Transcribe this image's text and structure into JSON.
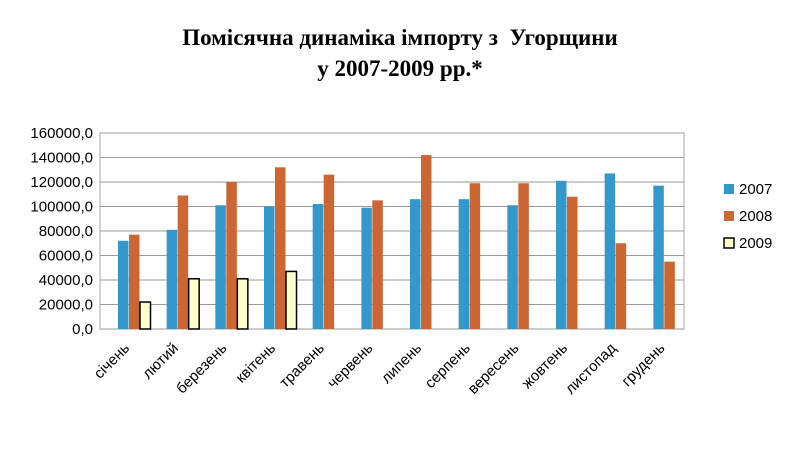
{
  "chart_data": {
    "type": "bar",
    "title_line1": "Помісячна динаміка імпорту з  Угорщини",
    "title_line2": "у 2007-2009 рр.*",
    "categories": [
      "січень",
      "лютий",
      "березень",
      "квітень",
      "травень",
      "червень",
      "липень",
      "серпень",
      "вересень",
      "жовтень",
      "листопад",
      "грудень"
    ],
    "series": [
      {
        "name": "2007",
        "color": "#3399cc",
        "values": [
          72000,
          81000,
          101000,
          100000,
          102000,
          99000,
          106000,
          106000,
          101000,
          121000,
          127000,
          117000
        ]
      },
      {
        "name": "2008",
        "color": "#cc6633",
        "values": [
          77000,
          109000,
          120000,
          132000,
          126000,
          105000,
          142000,
          119000,
          119000,
          108000,
          70000,
          55000
        ]
      },
      {
        "name": "2009",
        "color": "#ffffcc",
        "stroke": "#000000",
        "values": [
          22000,
          41000,
          41000,
          47000,
          null,
          null,
          null,
          null,
          null,
          null,
          null,
          null
        ]
      }
    ],
    "yticks": [
      "0,0",
      "20000,0",
      "40000,0",
      "60000,0",
      "80000,0",
      "100000,0",
      "120000,0",
      "140000,0",
      "160000,0"
    ],
    "ylim": [
      0,
      160000
    ],
    "grid": true,
    "legend": "right"
  }
}
